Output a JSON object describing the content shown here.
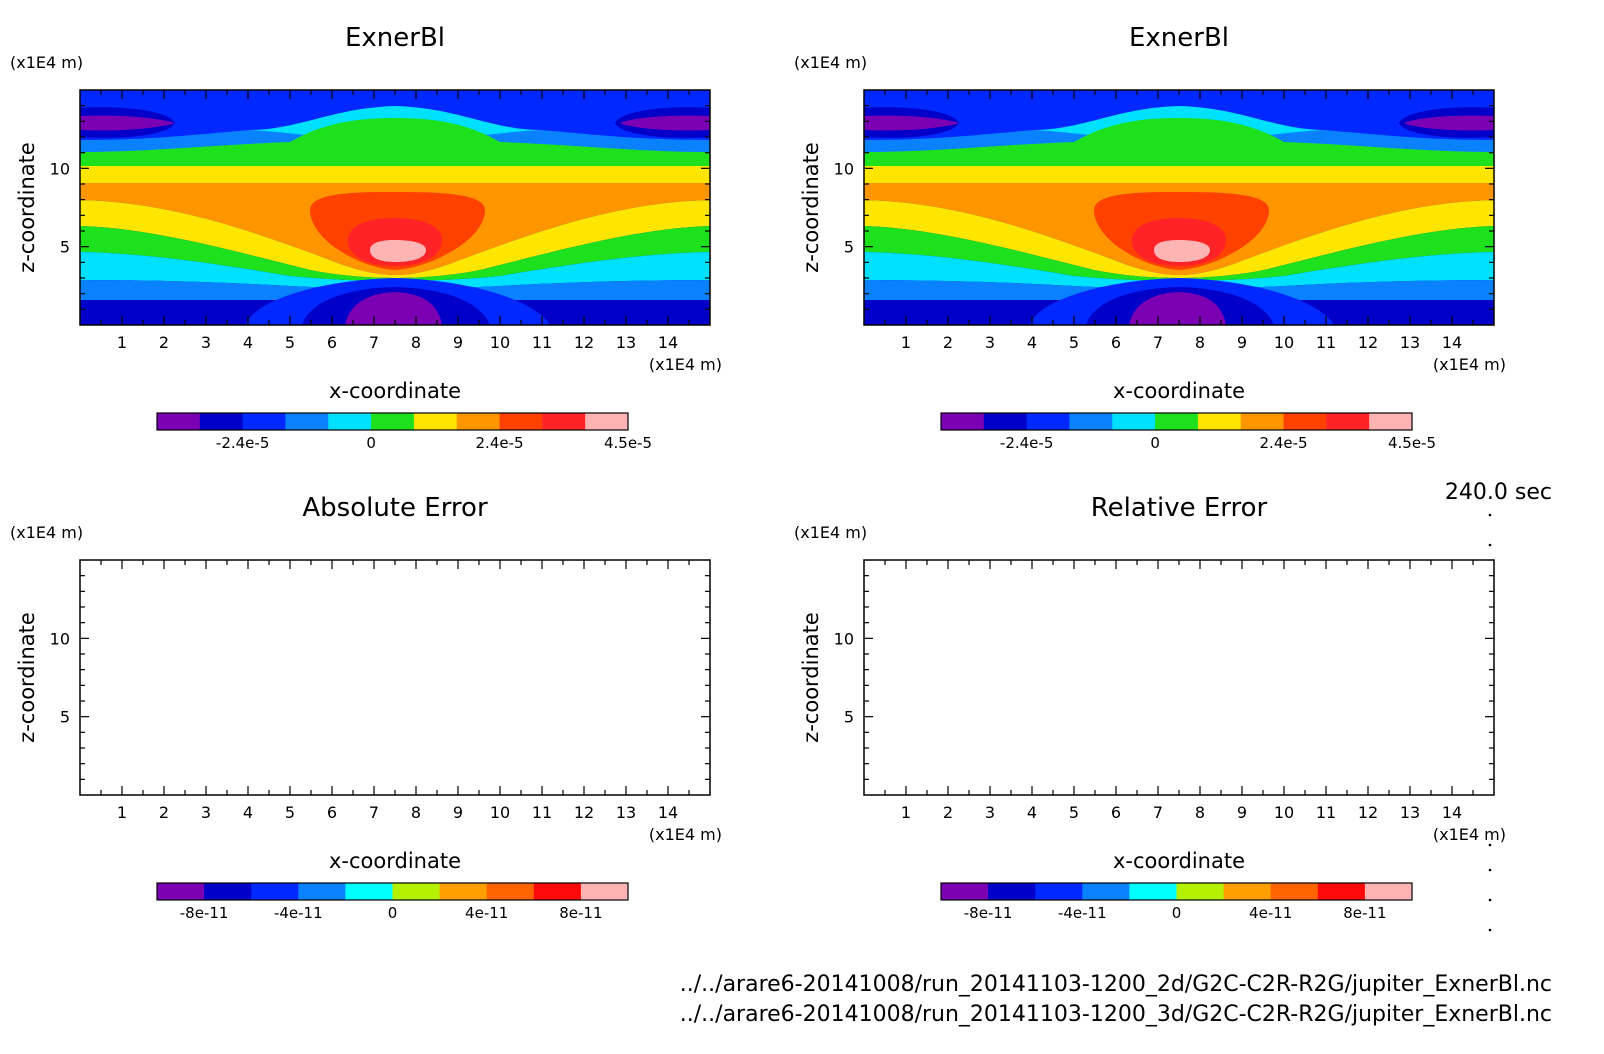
{
  "time_label": "240.0 sec",
  "files": [
    "../../arare6-20141008/run_20141103-1200_2d/G2C-C2R-R2G/jupiter_ExnerBl.nc",
    "../../arare6-20141008/run_20141103-1200_3d/G2C-C2R-R2G/jupiter_ExnerBl.nc"
  ],
  "colors": {
    "levels": [
      "#7b00b4",
      "#0000c8",
      "#0028ff",
      "#0a82ff",
      "#00e1ff",
      "#1ee11e",
      "#ffe600",
      "#ff9600",
      "#ff4100",
      "#ff2328",
      "#ffb4b4"
    ]
  },
  "chart_data": [
    {
      "type": "contour",
      "title": "ExnerBl",
      "xlabel": "x-coordinate",
      "ylabel": "z-coordinate",
      "x_unit": "(x1E4 m)",
      "y_unit": "(x1E4 m)",
      "xlim": [
        0,
        15
      ],
      "ylim": [
        0,
        15
      ],
      "xticks": [
        "1",
        "2",
        "3",
        "4",
        "5",
        "6",
        "7",
        "8",
        "9",
        "10",
        "11",
        "12",
        "13",
        "14"
      ],
      "yticks": [
        "5",
        "10"
      ],
      "field": "filled",
      "colorbar": {
        "n_levels": 11,
        "labels": [
          "-2.4e-5",
          "0",
          "2.4e-5",
          "4.5e-5"
        ],
        "label_positions": [
          2,
          5,
          8,
          11
        ]
      }
    },
    {
      "type": "contour",
      "title": "ExnerBl",
      "xlabel": "x-coordinate",
      "ylabel": "z-coordinate",
      "x_unit": "(x1E4 m)",
      "y_unit": "(x1E4 m)",
      "xlim": [
        0,
        15
      ],
      "ylim": [
        0,
        15
      ],
      "xticks": [
        "1",
        "2",
        "3",
        "4",
        "5",
        "6",
        "7",
        "8",
        "9",
        "10",
        "11",
        "12",
        "13",
        "14"
      ],
      "yticks": [
        "5",
        "10"
      ],
      "field": "filled",
      "colorbar": {
        "n_levels": 11,
        "labels": [
          "-2.4e-5",
          "0",
          "2.4e-5",
          "4.5e-5"
        ],
        "label_positions": [
          2,
          5,
          8,
          11
        ]
      }
    },
    {
      "type": "contour",
      "title": "Absolute Error",
      "xlabel": "x-coordinate",
      "ylabel": "z-coordinate",
      "x_unit": "(x1E4 m)",
      "y_unit": "(x1E4 m)",
      "xlim": [
        0,
        15
      ],
      "ylim": [
        0,
        15
      ],
      "xticks": [
        "1",
        "2",
        "3",
        "4",
        "5",
        "6",
        "7",
        "8",
        "9",
        "10",
        "11",
        "12",
        "13",
        "14"
      ],
      "yticks": [
        "5",
        "10"
      ],
      "field": "empty",
      "colorbar": {
        "n_levels": 10,
        "labels": [
          "-8e-11",
          "-4e-11",
          "0",
          "4e-11",
          "8e-11"
        ],
        "label_positions": [
          1,
          3,
          5,
          7,
          9
        ]
      }
    },
    {
      "type": "contour",
      "title": "Relative Error",
      "xlabel": "x-coordinate",
      "ylabel": "z-coordinate",
      "x_unit": "(x1E4 m)",
      "y_unit": "(x1E4 m)",
      "xlim": [
        0,
        15
      ],
      "ylim": [
        0,
        15
      ],
      "xticks": [
        "1",
        "2",
        "3",
        "4",
        "5",
        "6",
        "7",
        "8",
        "9",
        "10",
        "11",
        "12",
        "13",
        "14"
      ],
      "yticks": [
        "5",
        "10"
      ],
      "field": "empty",
      "colorbar": {
        "n_levels": 10,
        "labels": [
          "-8e-11",
          "-4e-11",
          "0",
          "4e-11",
          "8e-11"
        ],
        "label_positions": [
          1,
          3,
          5,
          7,
          9
        ]
      }
    }
  ]
}
